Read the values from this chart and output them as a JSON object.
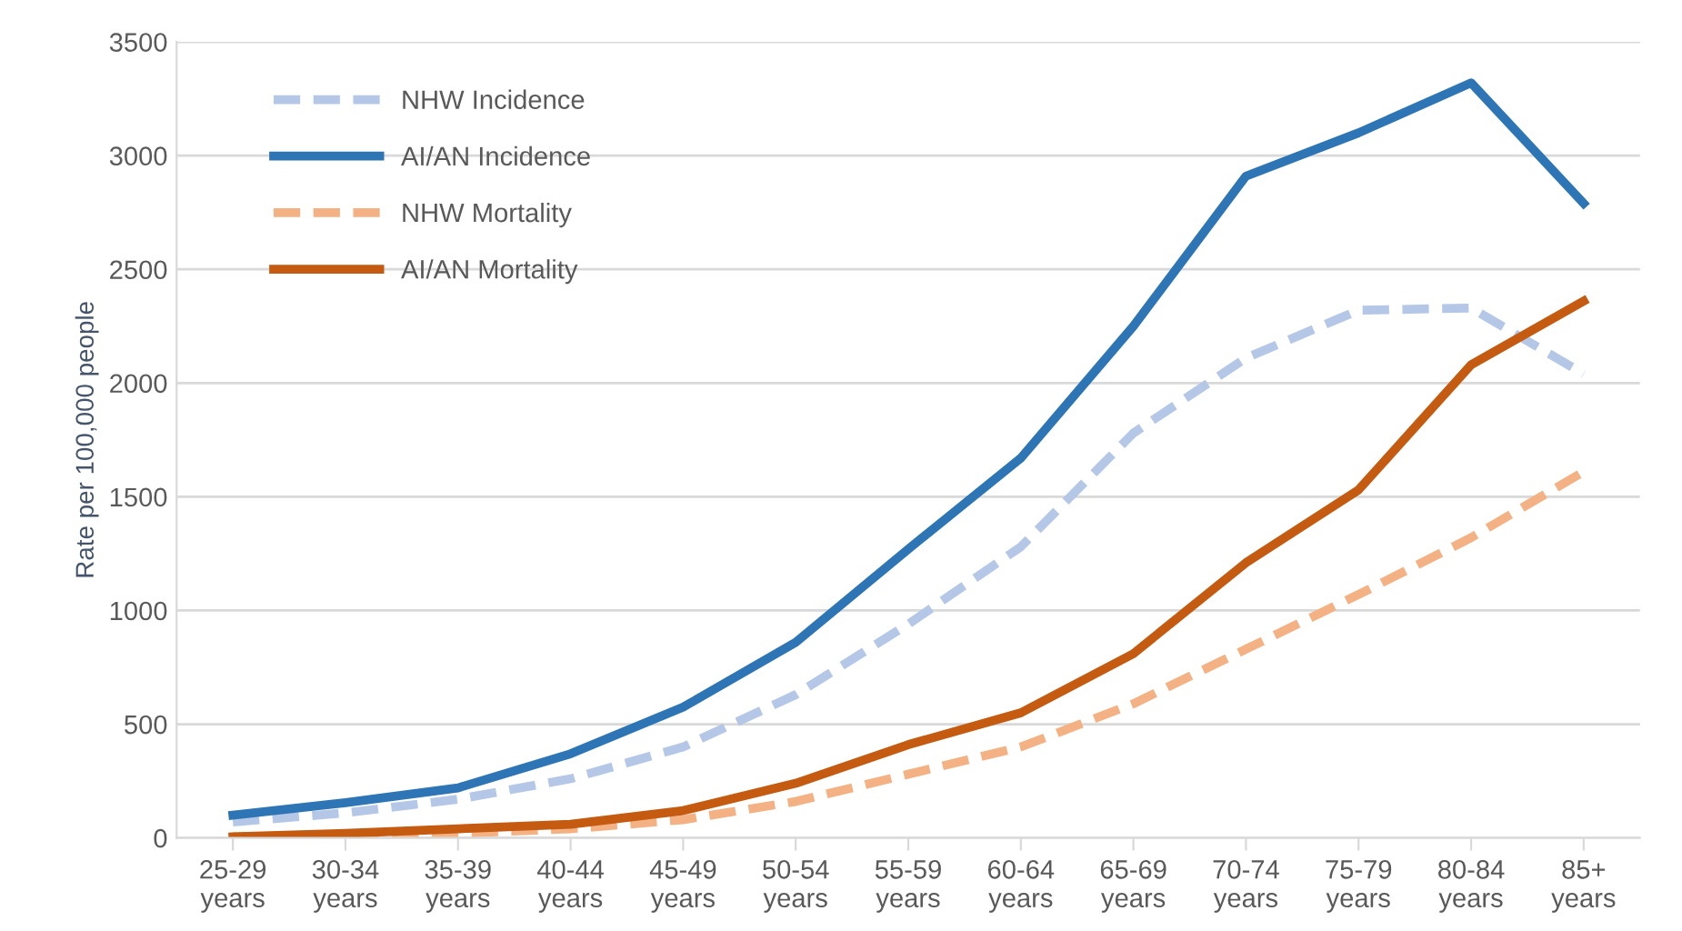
{
  "chart_data": {
    "type": "line",
    "ylabel": "Rate per 100,000 people",
    "categories": [
      "25-29\nyears",
      "30-34\nyears",
      "35-39\nyears",
      "40-44\nyears",
      "45-49\nyears",
      "50-54\nyears",
      "55-59\nyears",
      "60-64\nyears",
      "65-69\nyears",
      "70-74\nyears",
      "75-79\nyears",
      "80-84\nyears",
      "85+\nyears"
    ],
    "series": [
      {
        "name": "NHW Incidence",
        "color": "#b4c7e7",
        "line_style": "dashed",
        "values": [
          70,
          110,
          170,
          260,
          400,
          630,
          940,
          1280,
          1780,
          2110,
          2320,
          2330,
          2040
        ]
      },
      {
        "name": "AI/AN Incidence",
        "color": "#2e75b6",
        "line_style": "solid",
        "values": [
          100,
          155,
          220,
          370,
          575,
          860,
          1270,
          1670,
          2250,
          2910,
          3100,
          3320,
          2790
        ]
      },
      {
        "name": "NHW Mortality",
        "color": "#f4b183",
        "line_style": "dashed",
        "values": [
          5,
          10,
          20,
          40,
          80,
          160,
          280,
          400,
          590,
          830,
          1070,
          1320,
          1610
        ]
      },
      {
        "name": "AI/AN Mortality",
        "color": "#c55a11",
        "line_style": "solid",
        "values": [
          5,
          20,
          40,
          60,
          120,
          240,
          410,
          550,
          810,
          1210,
          1530,
          2080,
          2360
        ]
      }
    ],
    "ylim": [
      0,
      3500
    ],
    "yticks": [
      0,
      500,
      1000,
      1500,
      2000,
      2500,
      3000,
      3500
    ],
    "grid": "y",
    "legend": "top left",
    "marker": "none"
  }
}
